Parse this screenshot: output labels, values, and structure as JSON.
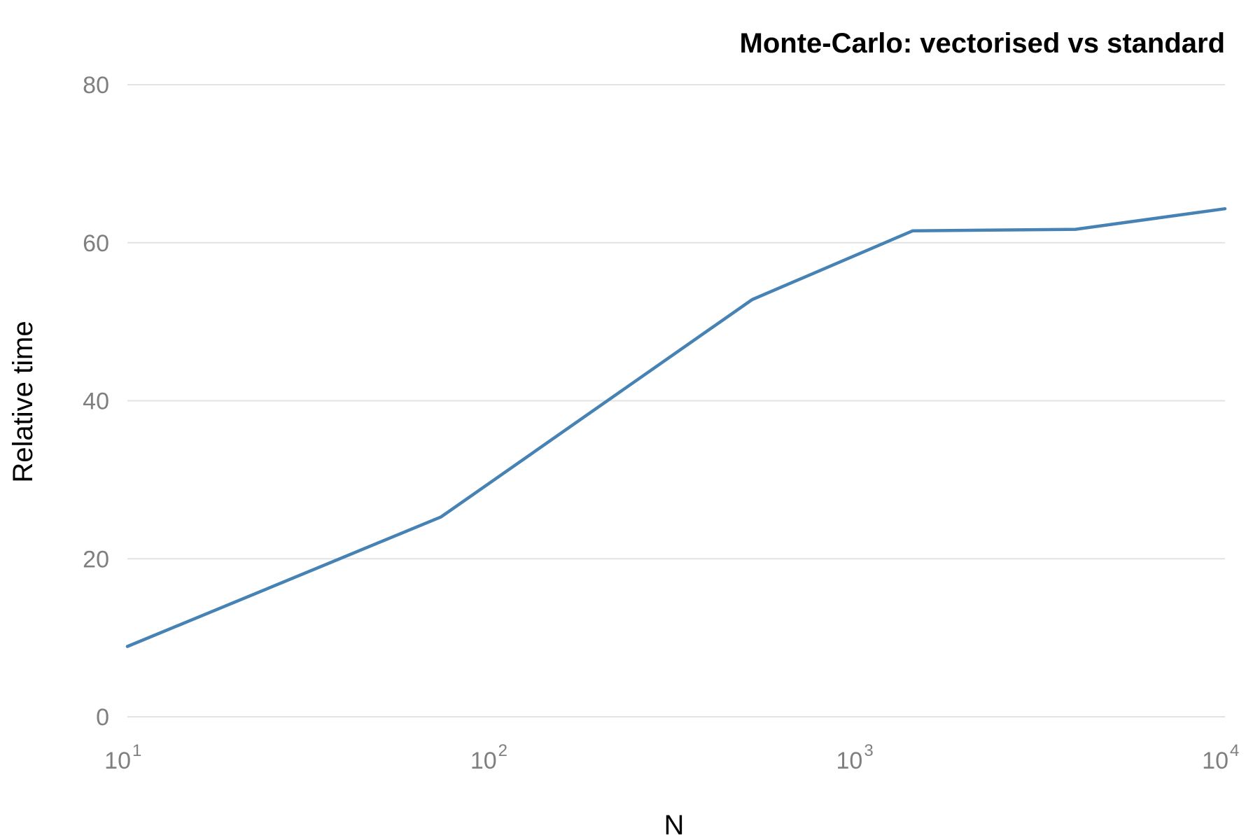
{
  "chart_data": {
    "type": "line",
    "title": "Monte-Carlo: vectorised vs standard",
    "xlabel": "N",
    "ylabel": "Relative time",
    "x_scale": "log10",
    "xlim": [
      10,
      10000
    ],
    "ylim": [
      0,
      80
    ],
    "x_ticks": [
      {
        "base": "10",
        "exp": "1",
        "value": 10
      },
      {
        "base": "10",
        "exp": "2",
        "value": 100
      },
      {
        "base": "10",
        "exp": "3",
        "value": 1000
      },
      {
        "base": "10",
        "exp": "4",
        "value": 10000
      }
    ],
    "y_ticks": [
      {
        "label": "0",
        "value": 0
      },
      {
        "label": "20",
        "value": 20
      },
      {
        "label": "40",
        "value": 40
      },
      {
        "label": "60",
        "value": 60
      },
      {
        "label": "80",
        "value": 80
      }
    ],
    "grid": "horizontal",
    "legend": "none",
    "series": [
      {
        "color": "#4682b4",
        "x": [
          10,
          72,
          510,
          1400,
          3900,
          10000
        ],
        "y": [
          8.9,
          25.3,
          52.8,
          61.5,
          61.7,
          64.3
        ]
      }
    ]
  }
}
